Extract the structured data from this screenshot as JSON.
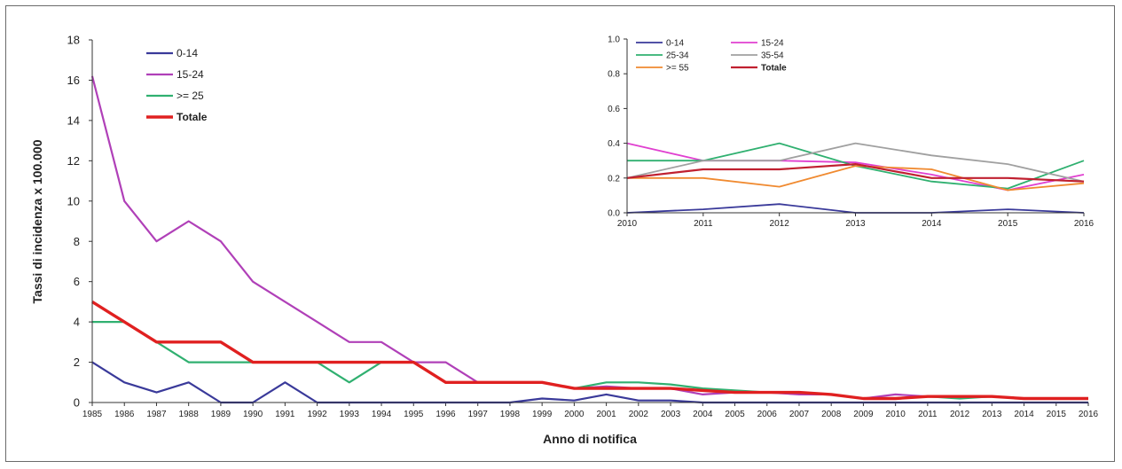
{
  "chart_data": [
    {
      "type": "line",
      "title": "",
      "xlabel": "Anno di notifica",
      "ylabel": "Tassi di incidenza x 100.000",
      "ylim": [
        0,
        18
      ],
      "yticks": [
        0,
        2,
        4,
        6,
        8,
        10,
        12,
        14,
        16,
        18
      ],
      "grid": false,
      "legend_position": "top-left",
      "categories": [
        "1985",
        "1986",
        "1987",
        "1988",
        "1989",
        "1990",
        "1991",
        "1992",
        "1993",
        "1994",
        "1995",
        "1996",
        "1997",
        "1998",
        "1999",
        "2000",
        "2001",
        "2002",
        "2003",
        "2004",
        "2005",
        "2006",
        "2007",
        "2008",
        "2009",
        "2010",
        "2011",
        "2012",
        "2013",
        "2014",
        "2015",
        "2016"
      ],
      "series": [
        {
          "name": "0-14",
          "color": "#3a3a9a",
          "values": [
            2,
            1,
            0.5,
            1,
            0,
            0,
            1,
            0,
            0,
            0,
            0,
            0,
            0,
            0,
            0.2,
            0.1,
            0.4,
            0.1,
            0.1,
            0,
            0,
            0,
            0,
            0,
            0,
            0,
            0,
            0,
            0,
            0,
            0,
            0
          ]
        },
        {
          "name": "15-24",
          "color": "#b040b8",
          "values": [
            16.2,
            10,
            8,
            9,
            8,
            6,
            5,
            4,
            3,
            3,
            2,
            2,
            1,
            1,
            1,
            0.7,
            0.8,
            0.7,
            0.7,
            0.4,
            0.5,
            0.5,
            0.4,
            0.4,
            0.2,
            0.4,
            0.3,
            0.3,
            0.3,
            0.2,
            0.2,
            0.2
          ]
        },
        {
          "name": ">= 25",
          "color": "#30b070",
          "values": [
            4,
            4,
            3,
            2,
            2,
            2,
            2,
            2,
            1,
            2,
            2,
            1,
            1,
            1,
            1,
            0.7,
            1,
            1,
            0.9,
            0.7,
            0.6,
            0.5,
            0.5,
            0.4,
            0.2,
            0.2,
            0.3,
            0.2,
            0.3,
            0.2,
            0.2,
            0.2
          ]
        },
        {
          "name": "Totale",
          "color": "#e02020",
          "values": [
            5,
            4,
            3,
            3,
            3,
            2,
            2,
            2,
            2,
            2,
            2,
            1,
            1,
            1,
            1,
            0.7,
            0.7,
            0.7,
            0.7,
            0.6,
            0.5,
            0.5,
            0.5,
            0.4,
            0.2,
            0.2,
            0.3,
            0.3,
            0.3,
            0.2,
            0.2,
            0.2
          ]
        }
      ]
    },
    {
      "type": "line",
      "title": "",
      "xlabel": "",
      "ylabel": "",
      "ylim": [
        0,
        1
      ],
      "yticks": [
        "0.0",
        "0.2",
        "0.4",
        "0.6",
        "0.8",
        "1.0"
      ],
      "grid": false,
      "legend_position": "top",
      "categories": [
        "2010",
        "2011",
        "2012",
        "2013",
        "2014",
        "2015",
        "2016"
      ],
      "series": [
        {
          "name": "0-14",
          "color": "#3a3a9a",
          "values": [
            0,
            0.02,
            0.05,
            0,
            0,
            0.02,
            0
          ]
        },
        {
          "name": "15-24",
          "color": "#e040d0",
          "values": [
            0.4,
            0.3,
            0.3,
            0.29,
            0.22,
            0.13,
            0.22
          ]
        },
        {
          "name": "25-34",
          "color": "#30b070",
          "values": [
            0.3,
            0.3,
            0.4,
            0.27,
            0.18,
            0.14,
            0.3
          ]
        },
        {
          "name": "35-54",
          "color": "#a0a0a0",
          "values": [
            0.2,
            0.3,
            0.3,
            0.4,
            0.33,
            0.28,
            0.18
          ]
        },
        {
          "name": ">= 55",
          "color": "#f08a30",
          "values": [
            0.2,
            0.2,
            0.15,
            0.27,
            0.25,
            0.13,
            0.17
          ]
        },
        {
          "name": "Totale",
          "color": "#c02030",
          "values": [
            0.2,
            0.25,
            0.25,
            0.28,
            0.2,
            0.2,
            0.18
          ]
        }
      ]
    }
  ]
}
